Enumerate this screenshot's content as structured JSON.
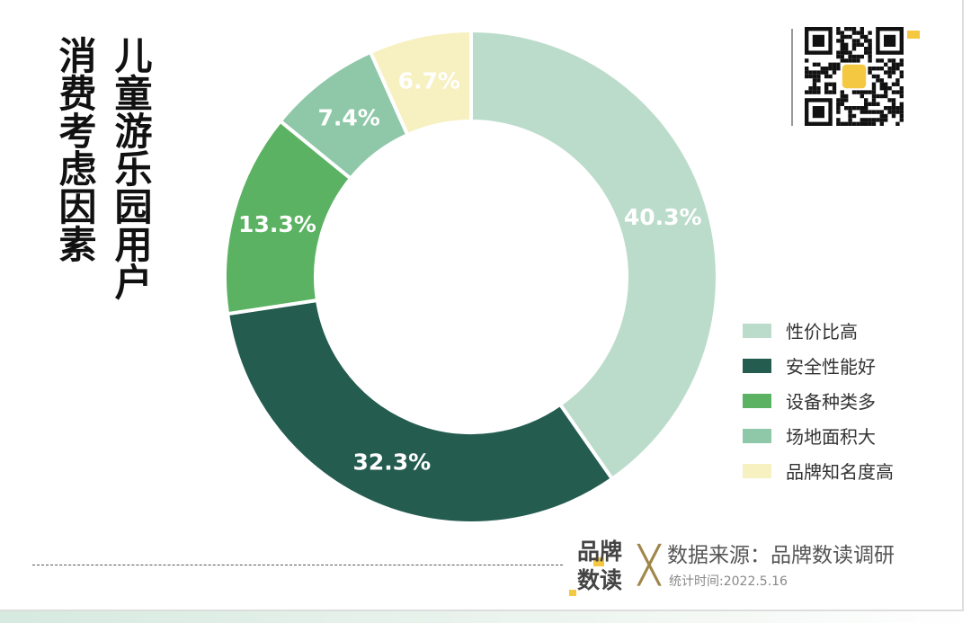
{
  "title_lines": [
    "儿童游乐园用户",
    "消费考虑因素"
  ],
  "chart_data": {
    "type": "pie",
    "donut": true,
    "start": "top, clockwise",
    "categories": [
      "性价比高",
      "安全性能好",
      "设备种类多",
      "场地面积大",
      "品牌知名度高"
    ],
    "values": [
      40.3,
      32.3,
      13.3,
      7.4,
      6.7
    ],
    "labels": [
      "40.3%",
      "32.3%",
      "13.3%",
      "7.4%",
      "6.7%"
    ],
    "colors": [
      "#bcdccb",
      "#245c50",
      "#5bb262",
      "#8fc8a9",
      "#f7f0c0"
    ],
    "label_colors": [
      "#ffffff",
      "#ffffff",
      "#ffffff",
      "#ffffff",
      "#ffffff"
    ],
    "legend": "right"
  },
  "footer": {
    "brand_logo": "品牌数读",
    "source": "数据来源：品牌数读调研",
    "date": "统计时间:2022.5.16"
  }
}
